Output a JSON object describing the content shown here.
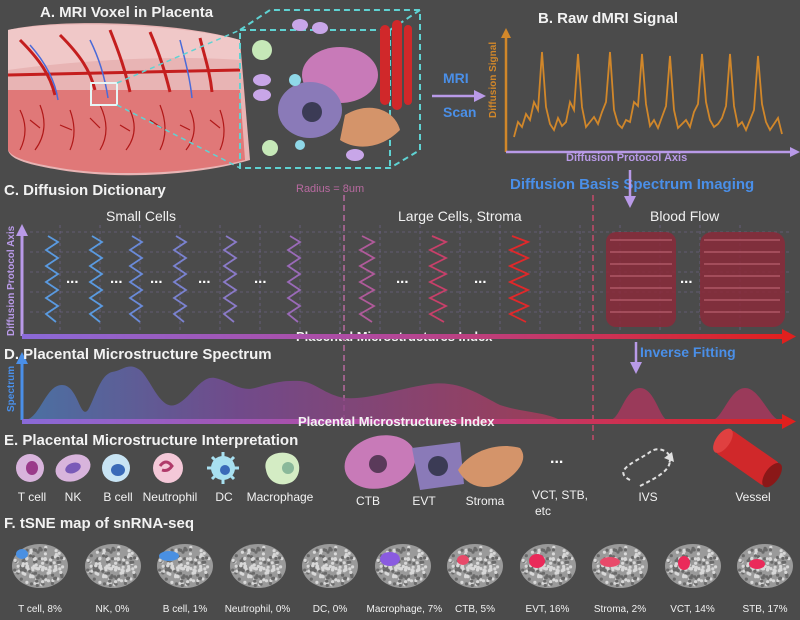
{
  "panel_a": {
    "title": "A. MRI Voxel in Placenta"
  },
  "panel_b": {
    "title": "B. Raw dMRI Signal",
    "y_label": "Diffusion Signal",
    "x_label": "Diffusion Protocol Axis"
  },
  "mri_scan": {
    "line1": "MRI",
    "line2": "Scan"
  },
  "panel_c": {
    "title": "C. Diffusion Dictionary",
    "radius_label": "Radius = 8um",
    "y_label": "Diffusion Protocol Axis",
    "x_label": "Placental Microstructures Index",
    "groups": [
      "Small Cells",
      "Large Cells, Stroma",
      "Blood Flow"
    ],
    "ellipsis": "..."
  },
  "dbsi": {
    "label": "Diffusion Basis Spectrum Imaging"
  },
  "panel_d": {
    "title": "D. Placental Microstructure Spectrum",
    "y_label": "Spectrum",
    "x_label": "Placental Microstructures Index"
  },
  "inverse_fitting": {
    "label": "Inverse Fitting"
  },
  "panel_e": {
    "title": "E. Placental Microstructure Interpretation",
    "items": [
      "T cell",
      "NK",
      "B cell",
      "Neutrophil",
      "DC",
      "Macrophage",
      "CTB",
      "EVT",
      "Stroma",
      "VCT, STB,",
      "etc",
      "IVS",
      "Vessel"
    ],
    "ellipsis": "..."
  },
  "panel_f": {
    "title": "F. tSNE map of snRNA-seq",
    "maps": [
      {
        "label": "T cell, 8%",
        "hl": "#4a90e2"
      },
      {
        "label": "NK, 0%",
        "hl": ""
      },
      {
        "label": "B cell, 1%",
        "hl": "#4a90e2"
      },
      {
        "label": "Neutrophil, 0%",
        "hl": ""
      },
      {
        "label": "DC, 0%",
        "hl": ""
      },
      {
        "label": "Macrophage, 7%",
        "hl": "#8a5be0"
      },
      {
        "label": "CTB, 5%",
        "hl": "#e84a6a"
      },
      {
        "label": "EVT, 16%",
        "hl": "#ea2a5a"
      },
      {
        "label": "Stroma, 2%",
        "hl": "#e84a6a"
      },
      {
        "label": "VCT, 14%",
        "hl": "#ea2a5a"
      },
      {
        "label": "STB, 17%",
        "hl": "#ea2a5a"
      }
    ]
  },
  "colors": {
    "signal": "#d1872a",
    "axis_purple": "#b99ae8",
    "accent_blue": "#4a8fe8",
    "red": "#e0201e",
    "dashed": "#c44aa0"
  }
}
